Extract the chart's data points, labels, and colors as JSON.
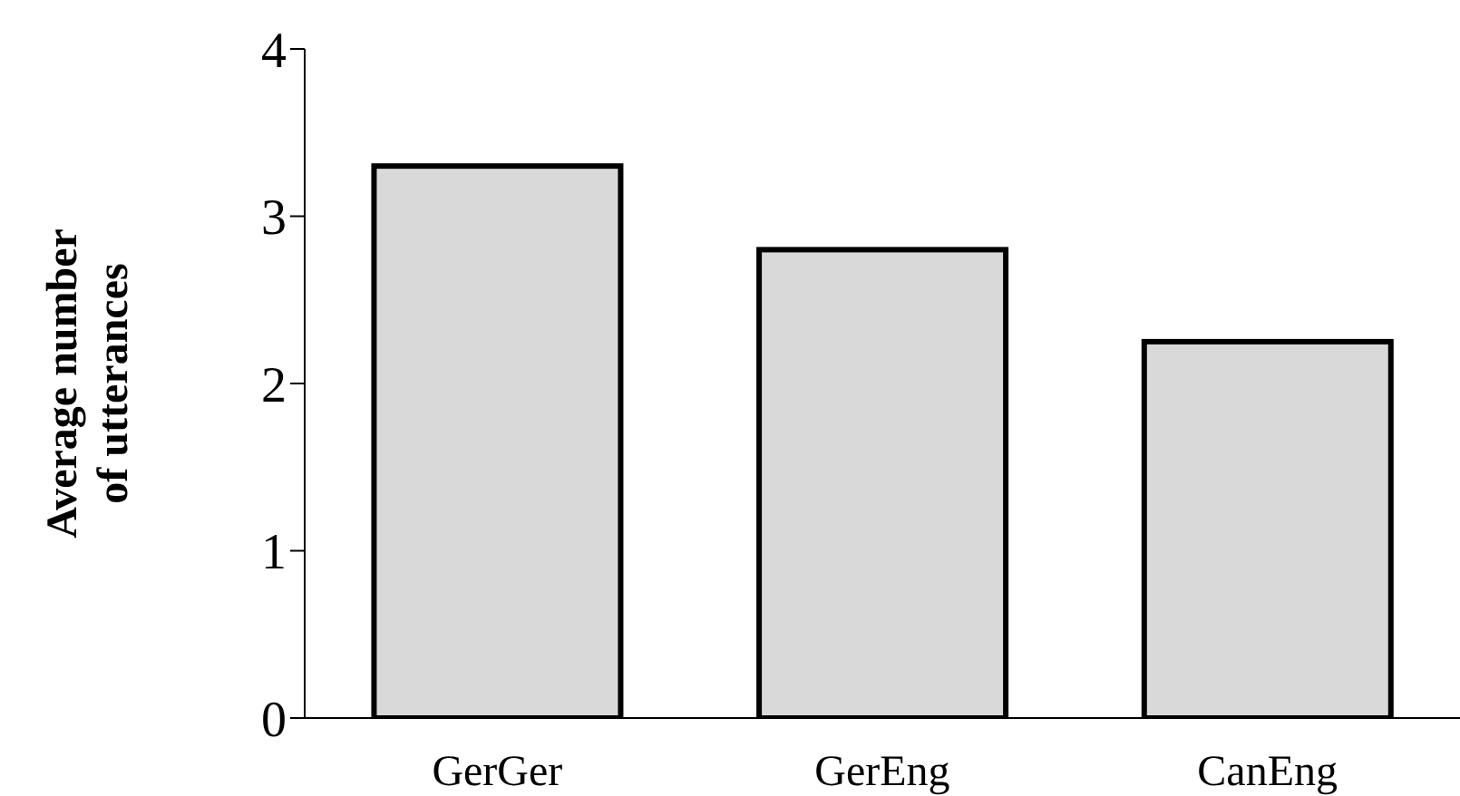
{
  "chart_data": {
    "type": "bar",
    "ylabel": "Average number\nof utterances",
    "categories": [
      "GerGer",
      "GerEng",
      "CanEng"
    ],
    "values": [
      3.3,
      2.8,
      2.25
    ],
    "color": "#d9d9d9",
    "ylim": [
      0,
      4
    ],
    "yticks": [
      0,
      1,
      2,
      3,
      4
    ],
    "grid": false
  }
}
